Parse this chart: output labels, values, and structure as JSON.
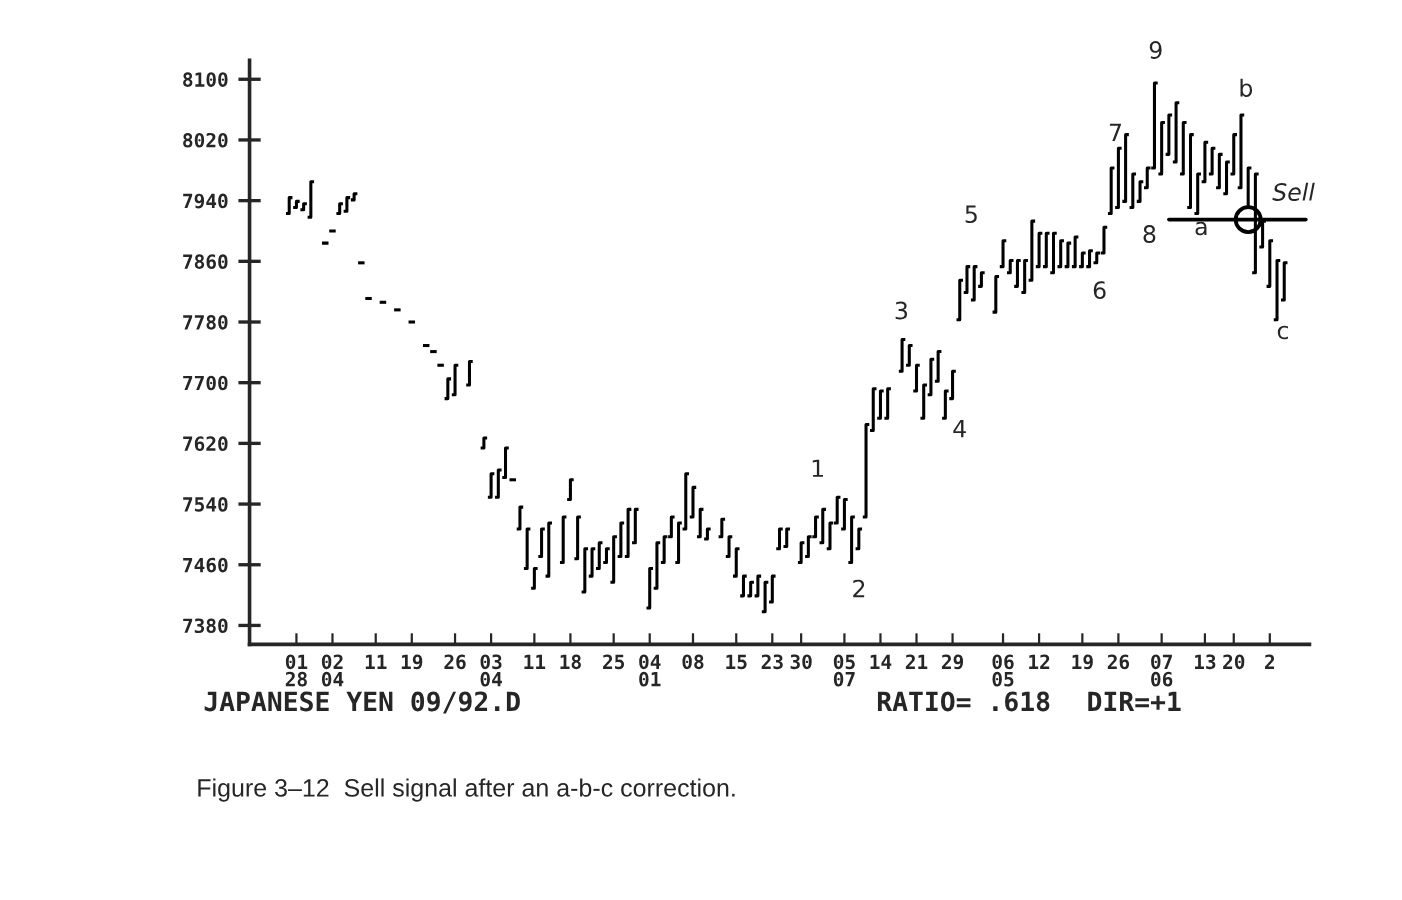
{
  "chart_data": {
    "type": "candlestick",
    "color": "#000000",
    "categories": [
      null,
      "01\n28",
      null,
      null,
      null,
      null,
      "02\n04",
      null,
      null,
      null,
      null,
      null,
      "11",
      null,
      null,
      null,
      null,
      "19",
      null,
      null,
      null,
      null,
      null,
      "26",
      null,
      null,
      null,
      null,
      "03\n04",
      null,
      null,
      null,
      null,
      null,
      "11",
      null,
      null,
      null,
      null,
      "18",
      null,
      null,
      null,
      null,
      null,
      "25",
      null,
      null,
      null,
      null,
      "04\n01",
      null,
      null,
      null,
      null,
      null,
      "08",
      null,
      null,
      null,
      null,
      null,
      "15",
      null,
      null,
      null,
      null,
      "23",
      null,
      null,
      null,
      "30",
      null,
      null,
      null,
      null,
      null,
      "05\n07",
      null,
      null,
      null,
      null,
      "14",
      null,
      null,
      null,
      null,
      "21",
      null,
      null,
      null,
      null,
      "29",
      null,
      null,
      null,
      null,
      null,
      null,
      "06\n05",
      null,
      null,
      null,
      null,
      "12",
      null,
      null,
      null,
      null,
      null,
      "19",
      null,
      null,
      null,
      null,
      "26",
      null,
      null,
      null,
      null,
      null,
      "07\n06",
      null,
      null,
      null,
      null,
      null,
      "13",
      null,
      null,
      null,
      "20",
      null,
      null,
      null,
      null,
      "2",
      null,
      null,
      null,
      null,
      null
    ],
    "ohlc": [
      [
        7923,
        7944,
        7923,
        7944
      ],
      [
        7931,
        7939,
        7931,
        7939
      ],
      [
        7928,
        7936,
        7928,
        7936
      ],
      [
        7918,
        7965,
        7918,
        7965
      ],
      null,
      [
        7884,
        7884,
        7884,
        7884
      ],
      [
        7900,
        7900,
        7900,
        7900
      ],
      [
        7923,
        7936,
        7923,
        7936
      ],
      [
        7926,
        7944,
        7926,
        7944
      ],
      [
        7941,
        7949,
        7941,
        7949
      ],
      [
        7858,
        7858,
        7858,
        7858
      ],
      [
        7811,
        7811,
        7811,
        7811
      ],
      null,
      [
        7806,
        7806,
        7806,
        7806
      ],
      null,
      [
        7796,
        7796,
        7796,
        7796
      ],
      null,
      [
        7780,
        7780,
        7780,
        7780
      ],
      null,
      [
        7749,
        7749,
        7749,
        7749
      ],
      [
        7741,
        7741,
        7741,
        7741
      ],
      [
        7723,
        7723,
        7723,
        7723
      ],
      [
        7679,
        7705,
        7679,
        7705
      ],
      [
        7684,
        7723,
        7684,
        7723
      ],
      null,
      [
        7697,
        7728,
        7697,
        7728
      ],
      null,
      [
        7614,
        7627,
        7614,
        7627
      ],
      [
        7549,
        7580,
        7549,
        7580
      ],
      [
        7549,
        7585,
        7549,
        7585
      ],
      [
        7575,
        7614,
        7575,
        7614
      ],
      [
        7572,
        7572,
        7572,
        7572
      ],
      [
        7507,
        7536,
        7507,
        7536
      ],
      [
        7455,
        7507,
        7455,
        7507
      ],
      [
        7429,
        7455,
        7429,
        7455
      ],
      [
        7471,
        7507,
        7471,
        7507
      ],
      [
        7445,
        7515,
        7445,
        7515
      ],
      null,
      [
        7463,
        7523,
        7463,
        7523
      ],
      [
        7546,
        7572,
        7546,
        7572
      ],
      [
        7468,
        7523,
        7468,
        7523
      ],
      [
        7424,
        7481,
        7424,
        7481
      ],
      [
        7445,
        7481,
        7445,
        7481
      ],
      [
        7455,
        7489,
        7455,
        7489
      ],
      [
        7463,
        7481,
        7463,
        7481
      ],
      [
        7437,
        7497,
        7437,
        7497
      ],
      [
        7471,
        7515,
        7471,
        7515
      ],
      [
        7471,
        7533,
        7471,
        7533
      ],
      [
        7489,
        7533,
        7489,
        7533
      ],
      null,
      [
        7403,
        7455,
        7403,
        7455
      ],
      [
        7429,
        7489,
        7429,
        7489
      ],
      [
        7463,
        7497,
        7463,
        7497
      ],
      [
        7497,
        7523,
        7497,
        7523
      ],
      [
        7463,
        7515,
        7463,
        7515
      ],
      [
        7507,
        7580,
        7507,
        7580
      ],
      [
        7523,
        7562,
        7523,
        7562
      ],
      [
        7497,
        7533,
        7497,
        7533
      ],
      [
        7494,
        7507,
        7494,
        7507
      ],
      null,
      [
        7497,
        7520,
        7497,
        7520
      ],
      [
        7471,
        7497,
        7471,
        7497
      ],
      [
        7445,
        7481,
        7445,
        7481
      ],
      [
        7419,
        7445,
        7419,
        7445
      ],
      [
        7419,
        7437,
        7419,
        7437
      ],
      [
        7419,
        7445,
        7419,
        7445
      ],
      [
        7398,
        7437,
        7398,
        7437
      ],
      [
        7411,
        7445,
        7411,
        7445
      ],
      [
        7481,
        7507,
        7481,
        7507
      ],
      [
        7484,
        7507,
        7484,
        7507
      ],
      null,
      [
        7463,
        7489,
        7463,
        7489
      ],
      [
        7471,
        7497,
        7471,
        7497
      ],
      [
        7497,
        7523,
        7497,
        7523
      ],
      [
        7489,
        7533,
        7489,
        7533
      ],
      [
        7481,
        7515,
        7481,
        7515
      ],
      [
        7515,
        7549,
        7515,
        7549
      ],
      [
        7507,
        7546,
        7507,
        7546
      ],
      [
        7463,
        7523,
        7463,
        7523
      ],
      [
        7481,
        7507,
        7481,
        7507
      ],
      [
        7523,
        7645,
        7523,
        7645
      ],
      [
        7637,
        7692,
        7637,
        7692
      ],
      [
        7653,
        7689,
        7653,
        7689
      ],
      [
        7653,
        7692,
        7653,
        7692
      ],
      null,
      [
        7715,
        7757,
        7715,
        7757
      ],
      [
        7723,
        7749,
        7723,
        7749
      ],
      [
        7689,
        7723,
        7689,
        7723
      ],
      [
        7653,
        7697,
        7653,
        7697
      ],
      [
        7684,
        7731,
        7684,
        7731
      ],
      [
        7702,
        7741,
        7702,
        7741
      ],
      [
        7653,
        7689,
        7653,
        7689
      ],
      [
        7679,
        7715,
        7679,
        7715
      ],
      [
        7783,
        7835,
        7783,
        7835
      ],
      [
        7819,
        7853,
        7819,
        7853
      ],
      [
        7809,
        7853,
        7809,
        7853
      ],
      [
        7827,
        7845,
        7827,
        7845
      ],
      null,
      [
        7793,
        7840,
        7793,
        7840
      ],
      [
        7853,
        7887,
        7853,
        7887
      ],
      [
        7845,
        7861,
        7845,
        7861
      ],
      [
        7827,
        7861,
        7827,
        7861
      ],
      [
        7819,
        7861,
        7819,
        7861
      ],
      [
        7835,
        7913,
        7835,
        7913
      ],
      [
        7853,
        7897,
        7853,
        7897
      ],
      [
        7853,
        7897,
        7853,
        7897
      ],
      [
        7845,
        7897,
        7845,
        7897
      ],
      [
        7853,
        7887,
        7853,
        7887
      ],
      [
        7853,
        7884,
        7853,
        7884
      ],
      [
        7853,
        7892,
        7853,
        7892
      ],
      [
        7853,
        7871,
        7853,
        7871
      ],
      [
        7853,
        7874,
        7853,
        7874
      ],
      [
        7858,
        7871,
        7858,
        7871
      ],
      [
        7871,
        7905,
        7871,
        7905
      ],
      [
        7923,
        7983,
        7923,
        7983
      ],
      [
        7931,
        8009,
        7931,
        8009
      ],
      [
        7939,
        8027,
        7939,
        8027
      ],
      [
        7931,
        7975,
        7931,
        7975
      ],
      [
        7939,
        7965,
        7939,
        7965
      ],
      [
        7957,
        7983,
        7957,
        7983
      ],
      [
        7983,
        8095,
        7983,
        8095
      ],
      [
        7975,
        8043,
        7975,
        8043
      ],
      [
        8001,
        8053,
        8001,
        8053
      ],
      [
        7991,
        8069,
        7991,
        8069
      ],
      [
        7975,
        8043,
        7975,
        8043
      ],
      [
        7931,
        8027,
        7931,
        8027
      ],
      [
        7923,
        7975,
        7923,
        7975
      ],
      [
        7965,
        8017,
        7965,
        8017
      ],
      [
        7975,
        8009,
        7975,
        8009
      ],
      [
        7957,
        8001,
        7957,
        8001
      ],
      [
        7949,
        7991,
        7949,
        7991
      ],
      [
        7975,
        8027,
        7975,
        8027
      ],
      [
        7957,
        8053,
        7957,
        8053
      ],
      [
        7931,
        7983,
        7931,
        7983
      ],
      [
        7845,
        7975,
        7845,
        7975
      ],
      [
        7879,
        7913,
        7879,
        7913
      ],
      [
        7827,
        7887,
        7827,
        7887
      ],
      [
        7783,
        7861,
        7783,
        7861
      ],
      [
        7809,
        7858,
        7809,
        7858
      ],
      null,
      null,
      null
    ],
    "series": [
      {
        "type": "line",
        "color": "#000000",
        "values": [
          null,
          null,
          null,
          null,
          null,
          null,
          null,
          null,
          null,
          null,
          null,
          null,
          null,
          null,
          null,
          null,
          null,
          null,
          null,
          null,
          null,
          null,
          null,
          null,
          null,
          null,
          null,
          null,
          null,
          null,
          null,
          null,
          null,
          null,
          null,
          null,
          null,
          null,
          null,
          null,
          null,
          null,
          null,
          null,
          null,
          null,
          null,
          null,
          null,
          null,
          null,
          null,
          null,
          null,
          null,
          null,
          null,
          null,
          null,
          null,
          null,
          null,
          null,
          null,
          null,
          null,
          null,
          null,
          null,
          null,
          null,
          null,
          null,
          null,
          null,
          null,
          null,
          null,
          null,
          null,
          null,
          null,
          null,
          null,
          null,
          null,
          null,
          null,
          null,
          null,
          null,
          null,
          null,
          null,
          null,
          null,
          null,
          null,
          null,
          null,
          null,
          null,
          null,
          null,
          null,
          null,
          null,
          null,
          null,
          null,
          null,
          null,
          null,
          null,
          null,
          null,
          null,
          null,
          null,
          null,
          null,
          null,
          7915,
          7915,
          7915,
          7915,
          7915,
          7915,
          7915,
          7915,
          7915,
          7915,
          7915,
          7915,
          7915,
          7915,
          7915,
          7915,
          7915,
          7915,
          7915,
          7915
        ]
      },
      {
        "type": "scatter",
        "color": "#000000",
        "marker": "circle",
        "values": [
          null,
          null,
          null,
          null,
          null,
          null,
          null,
          null,
          null,
          null,
          null,
          null,
          null,
          null,
          null,
          null,
          null,
          null,
          null,
          null,
          null,
          null,
          null,
          null,
          null,
          null,
          null,
          null,
          null,
          null,
          null,
          null,
          null,
          null,
          null,
          null,
          null,
          null,
          null,
          null,
          null,
          null,
          null,
          null,
          null,
          null,
          null,
          null,
          null,
          null,
          null,
          null,
          null,
          null,
          null,
          null,
          null,
          null,
          null,
          null,
          null,
          null,
          null,
          null,
          null,
          null,
          null,
          null,
          null,
          null,
          null,
          null,
          null,
          null,
          null,
          null,
          null,
          null,
          null,
          null,
          null,
          null,
          null,
          null,
          null,
          null,
          null,
          null,
          null,
          null,
          null,
          null,
          null,
          null,
          null,
          null,
          null,
          null,
          null,
          null,
          null,
          null,
          null,
          null,
          null,
          null,
          null,
          null,
          null,
          null,
          null,
          null,
          null,
          null,
          null,
          null,
          null,
          null,
          null,
          null,
          null,
          null,
          null,
          null,
          null,
          null,
          null,
          null,
          null,
          null,
          null,
          null,
          null,
          7915,
          null,
          null,
          null,
          null,
          null,
          null,
          null,
          null
        ]
      }
    ],
    "ylim": [
      7355,
      8125
    ],
    "yticks": [
      7380,
      7460,
      7540,
      7620,
      7700,
      7780,
      7860,
      7940,
      8020,
      8100
    ],
    "grid": false,
    "annotations": [
      "1",
      "2",
      "3",
      "4",
      "5",
      "6",
      "7",
      "8",
      "9",
      "a",
      "b",
      "c",
      "Sell",
      "JAPANESE YEN 09/92.D",
      "RATIO= .618",
      "DIR=+1",
      "Figure 3–12  Sell signal after an a-b-c correction."
    ]
  }
}
